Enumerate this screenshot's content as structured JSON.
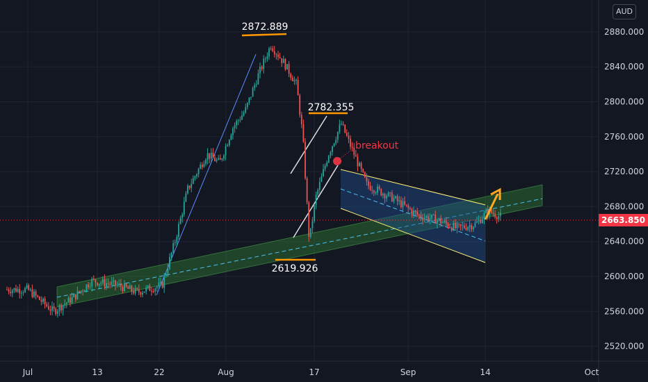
{
  "currency": "AUD",
  "current_price_label": "2663.850",
  "chart_data": {
    "type": "candlestick",
    "title": "",
    "xlabel": "",
    "ylabel": "",
    "currency": "AUD",
    "ylim": [
      2505,
      2915
    ],
    "x_tick_labels": [
      "Jul",
      "13",
      "22",
      "Aug",
      "17",
      "Sep",
      "14",
      "Oct"
    ],
    "y_tick_labels": [
      "2520.000",
      "2560.000",
      "2600.000",
      "2640.000",
      "2680.000",
      "2720.000",
      "2760.000",
      "2800.000",
      "2840.000",
      "2880.000"
    ],
    "current_price": 2663.85,
    "grid": true,
    "annotations": [
      {
        "label": "2872.889",
        "value": 2872.889
      },
      {
        "label": "2782.355",
        "value": 2782.355
      },
      {
        "label": "2619.926",
        "value": 2619.926
      },
      {
        "label": "breakout"
      }
    ],
    "approximate_close_path": [
      {
        "date": "2024-07-01",
        "close": 2585
      },
      {
        "date": "2024-07-05",
        "close": 2560
      },
      {
        "date": "2024-07-08",
        "close": 2575
      },
      {
        "date": "2024-07-11",
        "close": 2595
      },
      {
        "date": "2024-07-15",
        "close": 2590
      },
      {
        "date": "2024-07-18",
        "close": 2582
      },
      {
        "date": "2024-07-22",
        "close": 2590
      },
      {
        "date": "2024-07-24",
        "close": 2640
      },
      {
        "date": "2024-07-26",
        "close": 2700
      },
      {
        "date": "2024-07-29",
        "close": 2740
      },
      {
        "date": "2024-07-31",
        "close": 2730
      },
      {
        "date": "2024-08-02",
        "close": 2770
      },
      {
        "date": "2024-08-04",
        "close": 2790
      },
      {
        "date": "2024-08-06",
        "close": 2830
      },
      {
        "date": "2024-08-08",
        "close": 2865
      },
      {
        "date": "2024-08-10",
        "close": 2845
      },
      {
        "date": "2024-08-12",
        "close": 2820
      },
      {
        "date": "2024-08-13",
        "close": 2760
      },
      {
        "date": "2024-08-14",
        "close": 2640
      },
      {
        "date": "2024-08-15",
        "close": 2690
      },
      {
        "date": "2024-08-17",
        "close": 2740
      },
      {
        "date": "2024-08-19",
        "close": 2775
      },
      {
        "date": "2024-08-21",
        "close": 2740
      },
      {
        "date": "2024-08-23",
        "close": 2705
      },
      {
        "date": "2024-08-27",
        "close": 2690
      },
      {
        "date": "2024-08-31",
        "close": 2670
      },
      {
        "date": "2024-09-03",
        "close": 2665
      },
      {
        "date": "2024-09-06",
        "close": 2655
      },
      {
        "date": "2024-09-09",
        "close": 2660
      },
      {
        "date": "2024-09-11",
        "close": 2675
      },
      {
        "date": "2024-09-13",
        "close": 2668
      }
    ]
  }
}
